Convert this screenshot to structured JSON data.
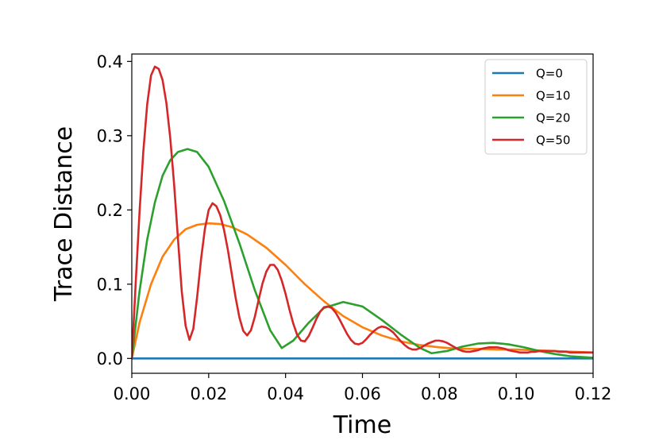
{
  "chart_data": {
    "type": "line",
    "title": "",
    "xlabel": "Time",
    "ylabel": "Trace Distance",
    "xlim": [
      0.0,
      0.12
    ],
    "ylim": [
      -0.02,
      0.41
    ],
    "xticks": [
      0.0,
      0.02,
      0.04,
      0.06,
      0.08,
      0.1,
      0.12
    ],
    "xtick_labels": [
      "0.00",
      "0.02",
      "0.04",
      "0.06",
      "0.08",
      "0.10",
      "0.12"
    ],
    "yticks": [
      0.0,
      0.1,
      0.2,
      0.3,
      0.4
    ],
    "ytick_labels": [
      "0.0",
      "0.1",
      "0.2",
      "0.3",
      "0.4"
    ],
    "grid": false,
    "legend_position": "top-right",
    "series": [
      {
        "name": "Q=0",
        "color": "#1f77b4",
        "x": [
          0.0,
          0.12
        ],
        "y": [
          0.0,
          0.0
        ]
      },
      {
        "name": "Q=10",
        "color": "#ff7f0e",
        "x": [
          0.0,
          0.002,
          0.005,
          0.008,
          0.011,
          0.014,
          0.017,
          0.02,
          0.023,
          0.026,
          0.03,
          0.035,
          0.04,
          0.045,
          0.05,
          0.055,
          0.06,
          0.065,
          0.07,
          0.075,
          0.08,
          0.085,
          0.09,
          0.095,
          0.1,
          0.105,
          0.11,
          0.115,
          0.12
        ],
        "y": [
          0.0,
          0.048,
          0.1,
          0.137,
          0.16,
          0.174,
          0.18,
          0.182,
          0.181,
          0.177,
          0.167,
          0.149,
          0.126,
          0.1,
          0.077,
          0.057,
          0.042,
          0.031,
          0.023,
          0.018,
          0.015,
          0.013,
          0.013,
          0.012,
          0.012,
          0.011,
          0.01,
          0.009,
          0.008
        ]
      },
      {
        "name": "Q=20",
        "color": "#2ca02c",
        "x": [
          0.0,
          0.002,
          0.004,
          0.006,
          0.008,
          0.01,
          0.012,
          0.0145,
          0.017,
          0.02,
          0.024,
          0.028,
          0.032,
          0.036,
          0.039,
          0.042,
          0.046,
          0.05,
          0.055,
          0.06,
          0.065,
          0.07,
          0.075,
          0.078,
          0.082,
          0.086,
          0.09,
          0.094,
          0.098,
          0.102,
          0.106,
          0.11,
          0.114,
          0.12
        ],
        "y": [
          0.0,
          0.09,
          0.16,
          0.21,
          0.246,
          0.267,
          0.278,
          0.282,
          0.278,
          0.258,
          0.212,
          0.155,
          0.092,
          0.038,
          0.014,
          0.024,
          0.048,
          0.068,
          0.076,
          0.07,
          0.052,
          0.032,
          0.014,
          0.007,
          0.01,
          0.016,
          0.02,
          0.021,
          0.019,
          0.015,
          0.01,
          0.006,
          0.003,
          0.001
        ]
      },
      {
        "name": "Q=50",
        "color": "#d62728",
        "x": [
          0.0,
          0.001,
          0.002,
          0.003,
          0.004,
          0.005,
          0.006,
          0.007,
          0.008,
          0.009,
          0.01,
          0.011,
          0.012,
          0.013,
          0.014,
          0.015,
          0.016,
          0.017,
          0.018,
          0.019,
          0.02,
          0.021,
          0.022,
          0.023,
          0.024,
          0.025,
          0.026,
          0.027,
          0.028,
          0.029,
          0.03,
          0.031,
          0.032,
          0.033,
          0.034,
          0.035,
          0.036,
          0.037,
          0.038,
          0.039,
          0.04,
          0.041,
          0.042,
          0.043,
          0.044,
          0.045,
          0.046,
          0.047,
          0.048,
          0.049,
          0.05,
          0.051,
          0.052,
          0.053,
          0.054,
          0.055,
          0.056,
          0.057,
          0.058,
          0.059,
          0.06,
          0.061,
          0.062,
          0.063,
          0.064,
          0.065,
          0.066,
          0.067,
          0.068,
          0.069,
          0.07,
          0.071,
          0.072,
          0.073,
          0.074,
          0.075,
          0.076,
          0.077,
          0.078,
          0.079,
          0.08,
          0.081,
          0.082,
          0.083,
          0.084,
          0.085,
          0.086,
          0.087,
          0.088,
          0.089,
          0.09,
          0.091,
          0.092,
          0.093,
          0.094,
          0.095,
          0.096,
          0.097,
          0.098,
          0.099,
          0.1,
          0.101,
          0.102,
          0.103,
          0.104,
          0.105,
          0.106,
          0.107,
          0.108,
          0.109,
          0.11,
          0.111,
          0.112,
          0.113,
          0.114,
          0.115,
          0.116,
          0.117,
          0.118,
          0.119,
          0.12
        ],
        "y": [
          0.0,
          0.1,
          0.196,
          0.279,
          0.342,
          0.381,
          0.393,
          0.39,
          0.375,
          0.344,
          0.297,
          0.235,
          0.162,
          0.09,
          0.044,
          0.025,
          0.04,
          0.083,
          0.133,
          0.174,
          0.2,
          0.209,
          0.205,
          0.193,
          0.173,
          0.146,
          0.114,
          0.082,
          0.055,
          0.037,
          0.031,
          0.038,
          0.056,
          0.079,
          0.101,
          0.117,
          0.126,
          0.126,
          0.119,
          0.105,
          0.087,
          0.066,
          0.047,
          0.032,
          0.024,
          0.023,
          0.03,
          0.041,
          0.053,
          0.063,
          0.069,
          0.07,
          0.068,
          0.062,
          0.053,
          0.043,
          0.033,
          0.025,
          0.02,
          0.019,
          0.021,
          0.026,
          0.032,
          0.037,
          0.041,
          0.043,
          0.042,
          0.039,
          0.035,
          0.029,
          0.023,
          0.018,
          0.014,
          0.012,
          0.012,
          0.014,
          0.017,
          0.02,
          0.022,
          0.024,
          0.024,
          0.023,
          0.021,
          0.018,
          0.015,
          0.012,
          0.01,
          0.009,
          0.009,
          0.01,
          0.011,
          0.013,
          0.014,
          0.015,
          0.015,
          0.015,
          0.014,
          0.013,
          0.011,
          0.01,
          0.009,
          0.008,
          0.008,
          0.008,
          0.009,
          0.009,
          0.01,
          0.01,
          0.01,
          0.01,
          0.01,
          0.009,
          0.009,
          0.009,
          0.008,
          0.008,
          0.008,
          0.008,
          0.008,
          0.008,
          0.008
        ]
      }
    ]
  }
}
